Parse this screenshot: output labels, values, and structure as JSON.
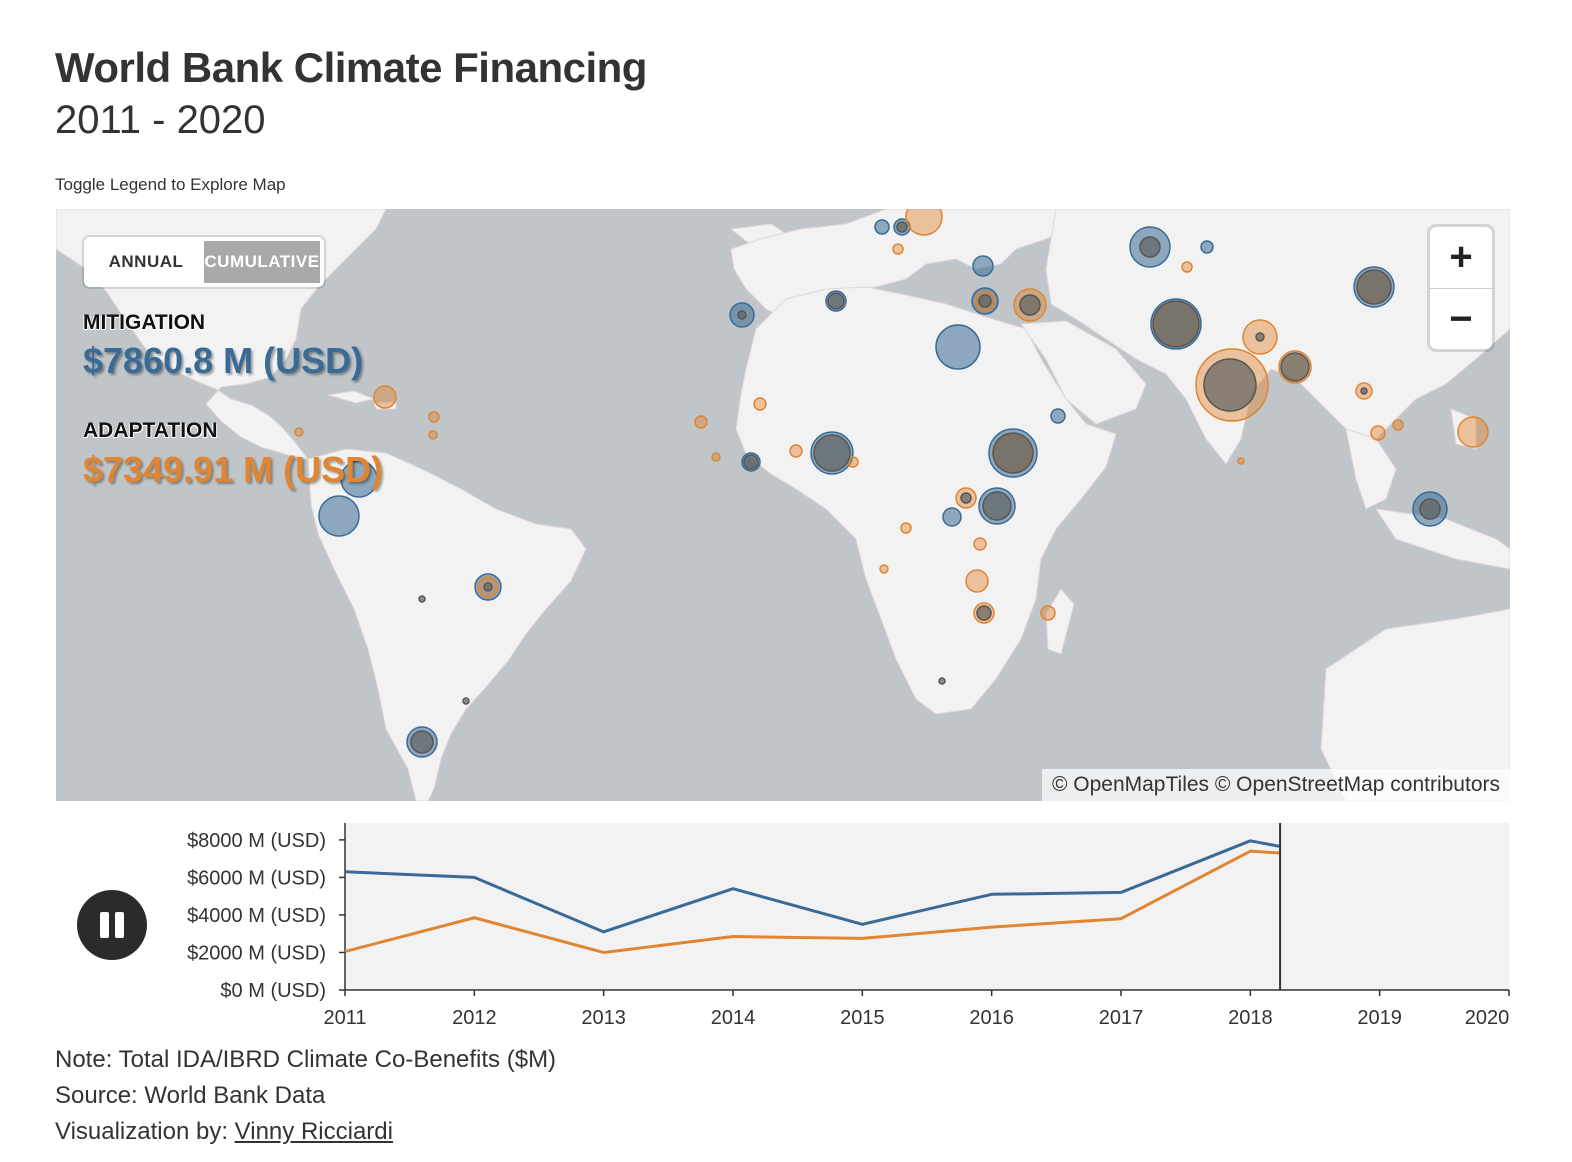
{
  "header": {
    "title": "World Bank Climate Financing",
    "subtitle": "2011 - 2020",
    "instruction": "Toggle Legend to Explore Map"
  },
  "toggle": {
    "annual_label": "ANNUAL",
    "cumulative_label": "CUMULATIVE",
    "selected": "CUMULATIVE"
  },
  "metrics": {
    "mitigation": {
      "label": "MITIGATION",
      "value": "$7860.8 M (USD)"
    },
    "adaptation": {
      "label": "ADAPTATION",
      "value": "$7349.91 M (USD)"
    }
  },
  "zoom": {
    "in_label": "+",
    "out_label": "−"
  },
  "attribution": "© OpenMapTiles © OpenStreetMap contributors",
  "colors": {
    "mitigation": "#3a6a96",
    "adaptation": "#e08532",
    "ocean": "#bfc5c8",
    "land": "#f2f2f2"
  },
  "chart_data": {
    "type": "line",
    "x": [
      2011,
      2012,
      2013,
      2014,
      2015,
      2016,
      2017,
      2018,
      2018.23
    ],
    "xticks": [
      "2011",
      "2012",
      "2013",
      "2014",
      "2015",
      "2016",
      "2017",
      "2018",
      "2019",
      "2020"
    ],
    "xlim": [
      2011,
      2020
    ],
    "yticks": [
      "$0 M (USD)",
      "$2000 M (USD)",
      "$4000 M (USD)",
      "$6000 M (USD)",
      "$8000 M (USD)"
    ],
    "ylim": [
      0,
      8900
    ],
    "current_year": 2018.23,
    "series": [
      {
        "key": "mitigation",
        "values": [
          6300,
          6000,
          3100,
          5400,
          3500,
          5100,
          5200,
          7950,
          7650
        ]
      },
      {
        "key": "adaptation",
        "values": [
          2050,
          3850,
          2000,
          2850,
          2750,
          3350,
          3800,
          7400,
          7300
        ]
      }
    ]
  },
  "footer": {
    "note": "Note: Total IDA/IBRD Climate Co-Benefits ($M)",
    "source": "Source: World Bank Data",
    "viz_prefix": "Visualization by: ",
    "viz_author": "Vinny Ricciardi"
  }
}
